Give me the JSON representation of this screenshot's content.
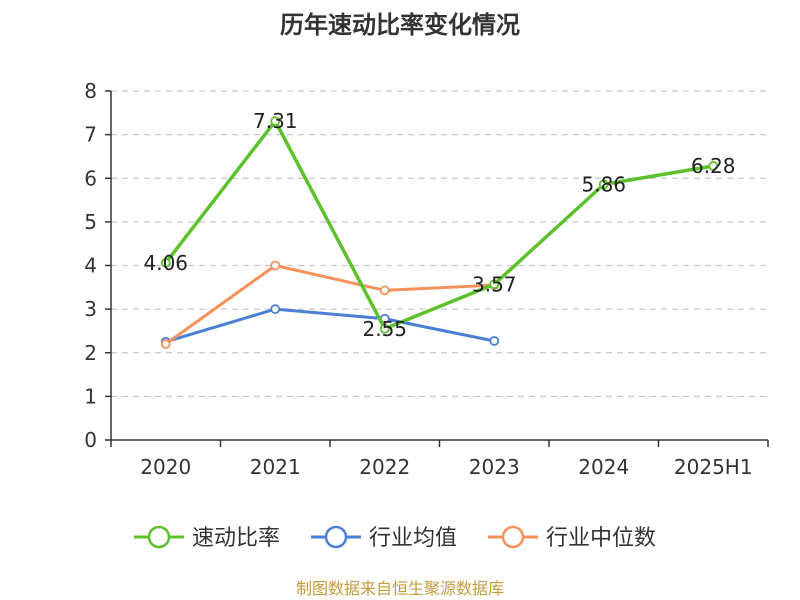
{
  "chart_data": {
    "type": "line",
    "title": "历年速动比率变化情况",
    "categories": [
      "2020",
      "2021",
      "2022",
      "2023",
      "2024",
      "2025H1"
    ],
    "ylim": [
      0,
      8
    ],
    "yticks": [
      "0",
      "1",
      "2",
      "3",
      "4",
      "5",
      "6",
      "7",
      "8"
    ],
    "grid": true,
    "legend_position": "bottom",
    "series": [
      {
        "name": "速动比率",
        "color": "#5cc12a",
        "values": [
          4.06,
          7.31,
          2.55,
          3.57,
          5.86,
          6.28
        ],
        "labels": [
          "4.06",
          "7.31",
          "2.55",
          "3.57",
          "5.86",
          "6.28"
        ]
      },
      {
        "name": "行业均值",
        "color": "#4a7fd6",
        "values": [
          2.25,
          3.0,
          2.78,
          2.27,
          null,
          null
        ]
      },
      {
        "name": "行业中位数",
        "color": "#f5925c",
        "values": [
          2.2,
          4.0,
          3.43,
          3.55,
          null,
          null
        ]
      }
    ],
    "source": "制图数据来自恒生聚源数据库",
    "source_color": "#c49a3c"
  }
}
